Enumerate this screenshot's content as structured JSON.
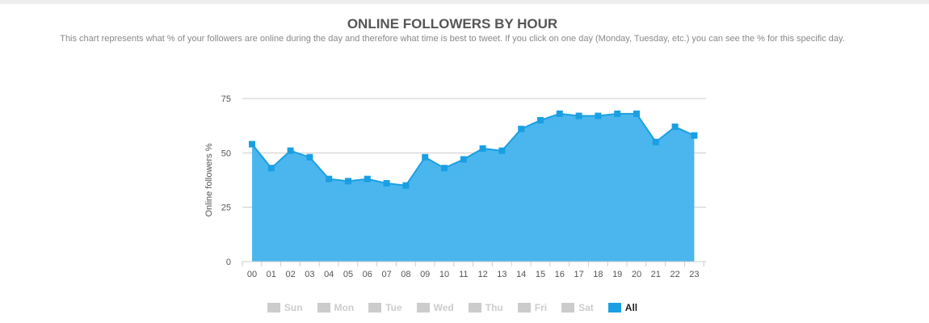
{
  "header": {
    "title": "ONLINE FOLLOWERS BY HOUR",
    "subtitle": "This chart represents what % of your followers are online during the day and therefore what time is best to tweet. If you click on one day (Monday, Tuesday, etc.) you can see the % for this specific day."
  },
  "legend": {
    "items": [
      {
        "label": "Sun",
        "active": false
      },
      {
        "label": "Mon",
        "active": false
      },
      {
        "label": "Tue",
        "active": false
      },
      {
        "label": "Wed",
        "active": false
      },
      {
        "label": "Thu",
        "active": false
      },
      {
        "label": "Fri",
        "active": false
      },
      {
        "label": "Sat",
        "active": false
      },
      {
        "label": "All",
        "active": true
      }
    ]
  },
  "colors": {
    "area_fill": "#4bb6ee",
    "line": "#1a9fe3",
    "marker": "#1a9fe3",
    "grid": "#cccccc",
    "axis_text": "#555555"
  },
  "chart_data": {
    "type": "area",
    "title": "ONLINE FOLLOWERS BY HOUR",
    "xlabel": "",
    "ylabel": "Online followers %",
    "categories": [
      "00",
      "01",
      "02",
      "03",
      "04",
      "05",
      "06",
      "07",
      "08",
      "09",
      "10",
      "11",
      "12",
      "13",
      "14",
      "15",
      "16",
      "17",
      "18",
      "19",
      "20",
      "21",
      "22",
      "23"
    ],
    "series": [
      {
        "name": "All",
        "values": [
          54,
          43,
          51,
          48,
          38,
          37,
          38,
          36,
          35,
          48,
          43,
          47,
          52,
          51,
          61,
          65,
          68,
          67,
          67,
          68,
          68,
          55,
          62,
          58
        ]
      }
    ],
    "ylim": [
      0,
      75
    ],
    "yticks": [
      0,
      25,
      50,
      75
    ],
    "grid": true,
    "legend_position": "bottom"
  }
}
